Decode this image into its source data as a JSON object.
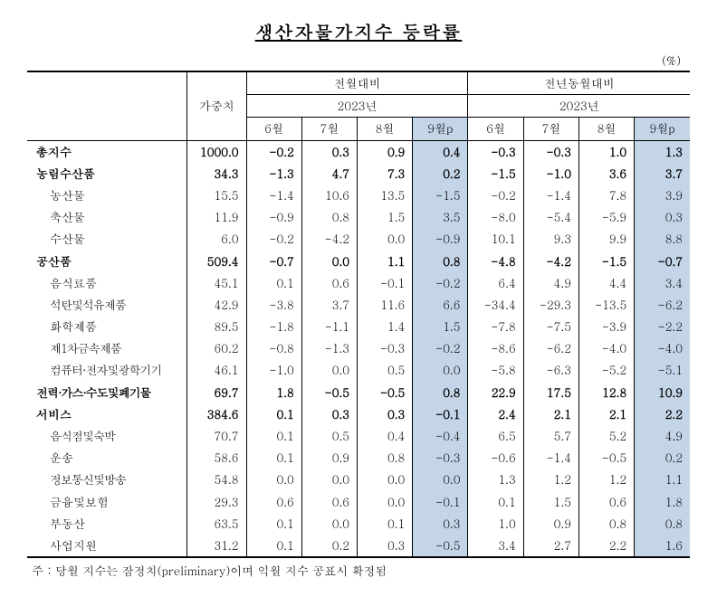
{
  "title": "생산자물가지수 등락률",
  "unit": "(%)",
  "headers": {
    "weight": "가중치",
    "mom": "전월대비",
    "yoy": "전년동월대비",
    "year": "2023년",
    "months": {
      "m6": "6월",
      "m7": "7월",
      "m8": "8월",
      "m9": "9월p"
    }
  },
  "rows": [
    {
      "label": "총지수",
      "bold": true,
      "indent": false,
      "weight": "1000.0",
      "mom": [
        "-0.2",
        "0.3",
        "0.9",
        "0.4"
      ],
      "yoy": [
        "-0.3",
        "-0.3",
        "1.0",
        "1.3"
      ]
    },
    {
      "label": "농림수산품",
      "bold": true,
      "indent": false,
      "weight": "34.3",
      "mom": [
        "-1.3",
        "4.7",
        "7.3",
        "0.2"
      ],
      "yoy": [
        "-1.5",
        "-1.0",
        "3.6",
        "3.7"
      ]
    },
    {
      "label": "농산물",
      "bold": false,
      "indent": true,
      "weight": "15.5",
      "mom": [
        "-1.4",
        "10.6",
        "13.5",
        "-1.5"
      ],
      "yoy": [
        "-0.2",
        "-1.4",
        "7.8",
        "3.9"
      ]
    },
    {
      "label": "축산물",
      "bold": false,
      "indent": true,
      "weight": "11.9",
      "mom": [
        "-0.9",
        "0.8",
        "1.5",
        "3.5"
      ],
      "yoy": [
        "-8.0",
        "-5.4",
        "-5.9",
        "0.3"
      ]
    },
    {
      "label": "수산물",
      "bold": false,
      "indent": true,
      "weight": "6.0",
      "mom": [
        "-0.2",
        "-4.2",
        "0.0",
        "-0.9"
      ],
      "yoy": [
        "10.1",
        "9.3",
        "9.9",
        "8.8"
      ]
    },
    {
      "label": "공산품",
      "bold": true,
      "indent": false,
      "weight": "509.4",
      "mom": [
        "-0.7",
        "0.0",
        "1.1",
        "0.8"
      ],
      "yoy": [
        "-4.8",
        "-4.2",
        "-1.5",
        "-0.7"
      ]
    },
    {
      "label": "음식료품",
      "bold": false,
      "indent": true,
      "weight": "45.1",
      "mom": [
        "0.1",
        "0.6",
        "-0.1",
        "-0.2"
      ],
      "yoy": [
        "6.4",
        "4.9",
        "4.4",
        "3.4"
      ]
    },
    {
      "label": "석탄및석유제품",
      "bold": false,
      "indent": true,
      "tight": true,
      "weight": "42.9",
      "mom": [
        "-3.8",
        "3.7",
        "11.6",
        "6.6"
      ],
      "yoy": [
        "-34.4",
        "-29.3",
        "-13.5",
        "-6.2"
      ]
    },
    {
      "label": "화학제품",
      "bold": false,
      "indent": true,
      "weight": "89.5",
      "mom": [
        "-1.8",
        "-1.1",
        "1.4",
        "1.5"
      ],
      "yoy": [
        "-7.8",
        "-7.5",
        "-3.9",
        "-2.2"
      ]
    },
    {
      "label": "제1차금속제품",
      "bold": false,
      "indent": true,
      "tight": true,
      "weight": "60.2",
      "mom": [
        "-0.8",
        "-1.3",
        "-0.3",
        "-0.2"
      ],
      "yoy": [
        "-8.6",
        "-6.2",
        "-4.0",
        "-4.0"
      ]
    },
    {
      "label": "컴퓨터·전자및광학기기",
      "bold": false,
      "indent": true,
      "tight": true,
      "weight": "46.1",
      "mom": [
        "-1.0",
        "0.0",
        "0.5",
        "0.0"
      ],
      "yoy": [
        "-5.8",
        "-6.3",
        "-5.2",
        "-5.1"
      ]
    },
    {
      "label": "전력·가스·수도및폐기물",
      "bold": true,
      "indent": false,
      "tight": true,
      "weight": "69.7",
      "mom": [
        "1.8",
        "-0.5",
        "-0.5",
        "0.8"
      ],
      "yoy": [
        "22.9",
        "17.5",
        "12.8",
        "10.9"
      ]
    },
    {
      "label": "서비스",
      "bold": true,
      "indent": false,
      "weight": "384.6",
      "mom": [
        "0.1",
        "0.3",
        "0.3",
        "-0.1"
      ],
      "yoy": [
        "2.4",
        "2.1",
        "2.1",
        "2.2"
      ]
    },
    {
      "label": "음식점및숙박",
      "bold": false,
      "indent": true,
      "tight": true,
      "weight": "70.7",
      "mom": [
        "0.1",
        "0.5",
        "0.4",
        "-0.4"
      ],
      "yoy": [
        "6.5",
        "5.7",
        "5.2",
        "4.9"
      ]
    },
    {
      "label": "운송",
      "bold": false,
      "indent": true,
      "weight": "58.6",
      "mom": [
        "0.1",
        "0.9",
        "0.8",
        "-0.3"
      ],
      "yoy": [
        "-0.6",
        "-1.4",
        "-0.5",
        "0.2"
      ]
    },
    {
      "label": "정보통신및방송",
      "bold": false,
      "indent": true,
      "tight": true,
      "weight": "54.8",
      "mom": [
        "0.0",
        "0.0",
        "0.0",
        "0.0"
      ],
      "yoy": [
        "1.3",
        "1.2",
        "1.2",
        "1.1"
      ]
    },
    {
      "label": "금융및보험",
      "bold": false,
      "indent": true,
      "weight": "29.3",
      "mom": [
        "0.6",
        "0.6",
        "0.0",
        "-0.1"
      ],
      "yoy": [
        "0.1",
        "1.5",
        "0.6",
        "1.8"
      ]
    },
    {
      "label": "부동산",
      "bold": false,
      "indent": true,
      "weight": "63.5",
      "mom": [
        "0.1",
        "0.0",
        "0.1",
        "0.3"
      ],
      "yoy": [
        "1.0",
        "0.9",
        "0.8",
        "0.8"
      ]
    },
    {
      "label": "사업지원",
      "bold": false,
      "indent": true,
      "weight": "31.2",
      "mom": [
        "0.1",
        "0.2",
        "0.3",
        "-0.5"
      ],
      "yoy": [
        "3.4",
        "2.7",
        "2.2",
        "1.6"
      ]
    }
  ],
  "footnote": "주 : 당월 지수는 잠정치(preliminary)이며 익월 지수 공표시 확정됨",
  "colors": {
    "highlight": "#c5d5e8",
    "text": "#000000",
    "background": "#ffffff"
  }
}
